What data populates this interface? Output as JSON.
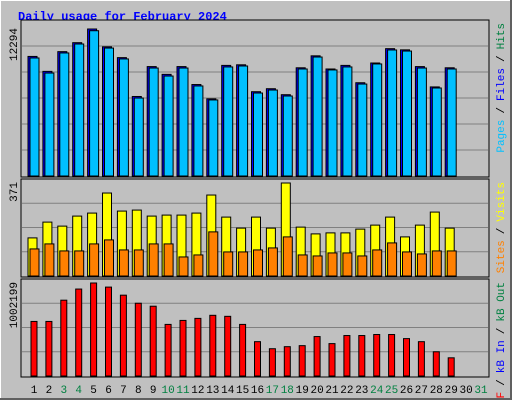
{
  "title": "Daily usage for February 2024",
  "legend_separator": "/",
  "chart_data": [
    {
      "type": "bar",
      "ylim": [
        0,
        12294
      ],
      "yticks": [
        12294
      ],
      "grid": true,
      "series": [
        {
          "name": "Files",
          "color": "#0000ff",
          "values": [
            10000,
            8750,
            10400,
            11150,
            12294,
            10800,
            9900,
            6650,
            9150,
            8500,
            9150,
            7650,
            6450,
            9250,
            9300,
            7050,
            7300,
            6800,
            9050,
            10050,
            8950,
            9250,
            7800,
            9450,
            10650,
            10550,
            9150,
            7450,
            9050,
            null,
            null
          ]
        },
        {
          "name": "Pages",
          "color": "#00c0ff",
          "values": [
            9870,
            8610,
            10290,
            11040,
            12150,
            10700,
            9790,
            6520,
            9030,
            8360,
            9030,
            7530,
            6360,
            9120,
            9200,
            6940,
            7190,
            6690,
            8950,
            9950,
            8870,
            9120,
            7690,
            9370,
            10540,
            10450,
            9030,
            7360,
            8950,
            null,
            null
          ]
        },
        {
          "name": "Hits",
          "color": "#008040",
          "values": [
            null,
            null,
            null,
            null,
            null,
            null,
            null,
            null,
            null,
            null,
            null,
            null,
            null,
            null,
            null,
            null,
            null,
            null,
            null,
            null,
            null,
            null,
            null,
            null,
            null,
            null,
            null,
            null,
            null,
            null,
            null
          ]
        }
      ]
    },
    {
      "type": "bar",
      "ylim": [
        0,
        371
      ],
      "yticks": [
        371
      ],
      "grid": true,
      "series": [
        {
          "name": "Visits",
          "color": "#ffff00",
          "values": [
            152,
            215,
            199,
            239,
            251,
            331,
            259,
            263,
            239,
            243,
            243,
            251,
            323,
            235,
            191,
            235,
            191,
            371,
            195,
            168,
            172,
            172,
            187,
            203,
            235,
            156,
            203,
            255,
            191,
            null,
            null
          ]
        },
        {
          "name": "Sites",
          "color": "#ff8000",
          "values": [
            108,
            128,
            100,
            100,
            128,
            144,
            104,
            104,
            128,
            128,
            76,
            84,
            176,
            96,
            96,
            104,
            112,
            156,
            84,
            80,
            92,
            92,
            80,
            104,
            132,
            96,
            88,
            100,
            100,
            null,
            null
          ]
        }
      ]
    },
    {
      "type": "bar",
      "ylim": [
        0,
        1002199
      ],
      "yticks": [
        1002199
      ],
      "grid": true,
      "categories": [
        "1",
        "2",
        "3",
        "4",
        "5",
        "6",
        "7",
        "8",
        "9",
        "10",
        "11",
        "12",
        "13",
        "14",
        "15",
        "16",
        "17",
        "18",
        "19",
        "20",
        "21",
        "22",
        "23",
        "24",
        "25",
        "26",
        "27",
        "28",
        "29",
        "30",
        "31"
      ],
      "category_color": "#000000",
      "highlight_color": "#008040",
      "highlight_categories": [
        2,
        3,
        9,
        10,
        16,
        17,
        23,
        24,
        30
      ],
      "series": [
        {
          "name": "kB F",
          "color": "#ff0000",
          "values": [
            588000,
            588000,
            817000,
            937000,
            1002199,
            958000,
            871000,
            784000,
            752000,
            556000,
            599000,
            621000,
            654000,
            643000,
            556000,
            370000,
            294000,
            316000,
            327000,
            425000,
            349000,
            436000,
            436000,
            447000,
            447000,
            403000,
            370000,
            261000,
            196000,
            null,
            null
          ]
        },
        {
          "name": "kB In",
          "color": "#0000ff",
          "values": [
            null,
            null,
            null,
            null,
            null,
            null,
            null,
            null,
            null,
            null,
            null,
            null,
            null,
            null,
            null,
            null,
            null,
            null,
            null,
            null,
            null,
            null,
            null,
            null,
            null,
            null,
            null,
            null,
            null,
            null,
            null
          ]
        },
        {
          "name": "kB Out",
          "color": "#008040",
          "values": [
            null,
            null,
            null,
            null,
            null,
            null,
            null,
            null,
            null,
            null,
            null,
            null,
            null,
            null,
            null,
            null,
            null,
            null,
            null,
            null,
            null,
            null,
            null,
            null,
            null,
            null,
            null,
            null,
            null,
            null,
            null
          ]
        }
      ]
    }
  ]
}
